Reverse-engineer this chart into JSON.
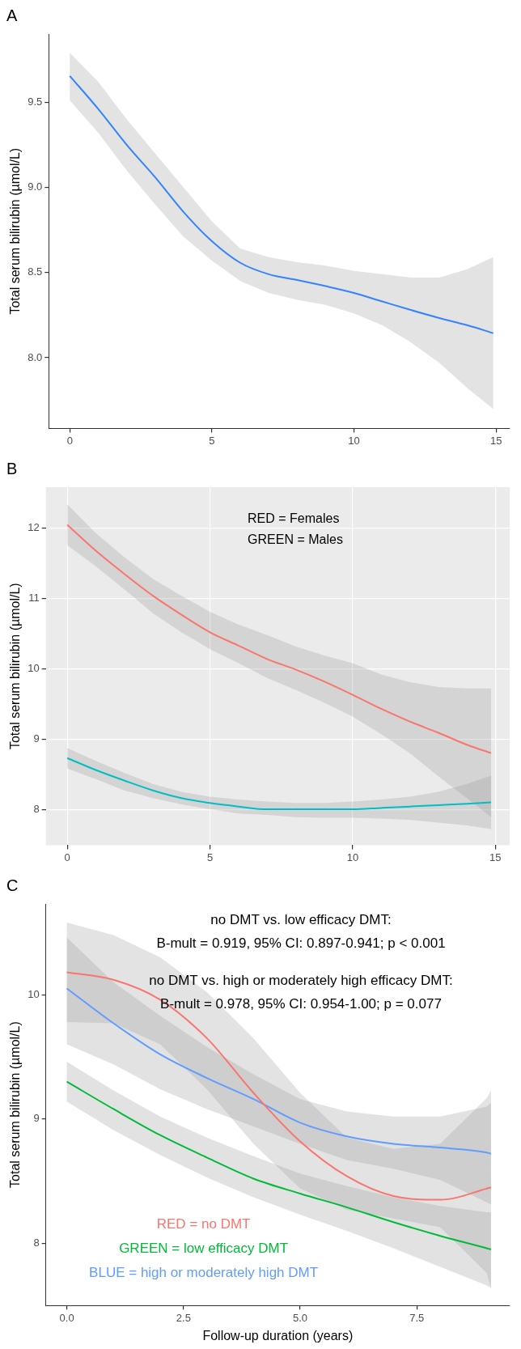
{
  "chart_data": [
    {
      "type": "line",
      "title": "A",
      "ylabel": "Total serum bilirubin (µmol/L)",
      "x": [
        0,
        1,
        2,
        3,
        4,
        5,
        6,
        7,
        8,
        9,
        10,
        11,
        12,
        13,
        14,
        14.9
      ],
      "xlim": [
        -0.74,
        15.48
      ],
      "xticks": [
        0,
        5,
        10,
        15
      ],
      "ylim": [
        7.585,
        9.9
      ],
      "yticks": [
        {
          "value": 8,
          "label": "8.0"
        },
        8.5,
        {
          "value": 9,
          "label": "9.0"
        },
        9.5
      ],
      "grid": false,
      "series": [
        {
          "color": "#3383ff",
          "values": [
            9.654,
            9.46,
            9.25,
            9.06,
            8.856,
            8.684,
            8.557,
            8.49,
            8.456,
            8.42,
            8.38,
            8.33,
            8.28,
            8.233,
            8.19,
            8.144
          ],
          "upper": [
            9.79,
            9.62,
            9.4,
            9.2,
            9.0,
            8.8,
            8.64,
            8.59,
            8.56,
            8.54,
            8.51,
            8.49,
            8.47,
            8.47,
            8.52,
            8.59
          ],
          "lower": [
            9.51,
            9.32,
            9.1,
            8.9,
            8.71,
            8.57,
            8.45,
            8.38,
            8.34,
            8.31,
            8.26,
            8.19,
            8.09,
            7.97,
            7.82,
            7.7
          ]
        }
      ]
    },
    {
      "type": "line",
      "title": "B",
      "ylabel": "Total serum bilirubin (µmol/L)",
      "x": [
        0,
        1,
        2,
        3,
        4,
        5,
        6,
        7,
        8,
        9,
        10,
        11,
        12,
        13,
        14,
        14.85
      ],
      "xlim": [
        -0.75,
        15.5
      ],
      "xticks": [
        0,
        5,
        10,
        15
      ],
      "ylim": [
        7.49,
        12.585
      ],
      "yticks": [
        8,
        9,
        10,
        11,
        12
      ],
      "grid": true,
      "annotations": [
        "RED = Females",
        "GREEN = Males"
      ],
      "series": [
        {
          "color": "#f8766d",
          "values": [
            12.05,
            11.68,
            11.35,
            11.04,
            10.77,
            10.52,
            10.33,
            10.14,
            9.99,
            9.82,
            9.63,
            9.43,
            9.25,
            9.09,
            8.92,
            8.8
          ],
          "upper": [
            12.34,
            11.93,
            11.59,
            11.28,
            11.04,
            10.81,
            10.63,
            10.48,
            10.32,
            10.19,
            10.08,
            9.92,
            9.81,
            9.74,
            9.72,
            9.72
          ],
          "lower": [
            11.76,
            11.46,
            11.13,
            10.79,
            10.52,
            10.28,
            10.08,
            9.87,
            9.7,
            9.52,
            9.32,
            9.07,
            8.8,
            8.47,
            8.16,
            7.89
          ]
        },
        {
          "color": "#00bfc4",
          "values": [
            8.73,
            8.56,
            8.41,
            8.27,
            8.16,
            8.09,
            8.04,
            8.0,
            8.0,
            8.0,
            8.0,
            8.02,
            8.04,
            8.06,
            8.08,
            8.1
          ],
          "upper": [
            8.87,
            8.69,
            8.52,
            8.36,
            8.25,
            8.18,
            8.14,
            8.11,
            8.09,
            8.09,
            8.11,
            8.14,
            8.18,
            8.25,
            8.36,
            8.48
          ],
          "lower": [
            8.58,
            8.43,
            8.27,
            8.16,
            8.07,
            8.0,
            7.94,
            7.92,
            7.89,
            7.88,
            7.88,
            7.87,
            7.85,
            7.81,
            7.77,
            7.72
          ]
        }
      ]
    },
    {
      "type": "line",
      "title": "C",
      "xlabel": "Follow-up duration (years)",
      "ylabel": "Total serum bilirubin (µmol/L)",
      "x": [
        0,
        1,
        2,
        3,
        4,
        5,
        6,
        7,
        8,
        9,
        9.09
      ],
      "xlim": [
        -0.45,
        9.49
      ],
      "xticks": [
        {
          "value": 0,
          "label": "0.0"
        },
        2.5,
        {
          "value": 5,
          "label": "5.0"
        },
        7.5
      ],
      "ylim": [
        7.5,
        10.73
      ],
      "yticks": [
        8,
        9,
        10
      ],
      "grid": false,
      "legend": "bottom left",
      "annotations": [
        "no DMT vs. low efficacy DMT:",
        "B-mult = 0.919, 95% CI: 0.897-0.941; p < 0.001",
        "no DMT vs. high or moderately high efficacy DMT:",
        "B-mult = 0.978, 95% CI: 0.954-1.00; p = 0.077"
      ],
      "series": [
        {
          "name": "RED = no DMT",
          "color": "#f8766d",
          "values": [
            10.18,
            10.12,
            9.96,
            9.65,
            9.21,
            8.82,
            8.54,
            8.38,
            8.35,
            8.44,
            8.45
          ],
          "upper": [
            10.58,
            10.48,
            10.3,
            10.02,
            9.65,
            9.21,
            8.85,
            8.76,
            8.8,
            9.17,
            9.23
          ],
          "lower": [
            9.78,
            9.77,
            9.6,
            9.24,
            8.8,
            8.44,
            8.27,
            8.2,
            8.13,
            7.76,
            7.64
          ]
        },
        {
          "name": "GREEN = low efficacy DMT",
          "color": "#00ba38",
          "values": [
            9.3,
            9.08,
            8.87,
            8.69,
            8.52,
            8.4,
            8.29,
            8.17,
            8.06,
            7.96,
            7.95
          ],
          "upper": [
            9.46,
            9.23,
            9.02,
            8.85,
            8.7,
            8.56,
            8.46,
            8.37,
            8.3,
            8.25,
            8.25
          ],
          "lower": [
            9.14,
            8.91,
            8.71,
            8.53,
            8.37,
            8.23,
            8.1,
            7.96,
            7.81,
            7.66,
            7.64
          ]
        },
        {
          "name": "BLUE = high or moderately high DMT",
          "color": "#619cff",
          "values": [
            10.05,
            9.77,
            9.52,
            9.33,
            9.16,
            8.97,
            8.86,
            8.8,
            8.77,
            8.73,
            8.72
          ],
          "upper": [
            10.46,
            10.1,
            9.83,
            9.58,
            9.36,
            9.16,
            9.06,
            9.02,
            9.02,
            9.1,
            9.13
          ],
          "lower": [
            9.6,
            9.44,
            9.24,
            9.08,
            8.94,
            8.8,
            8.67,
            8.6,
            8.51,
            8.33,
            8.31
          ]
        }
      ]
    }
  ]
}
